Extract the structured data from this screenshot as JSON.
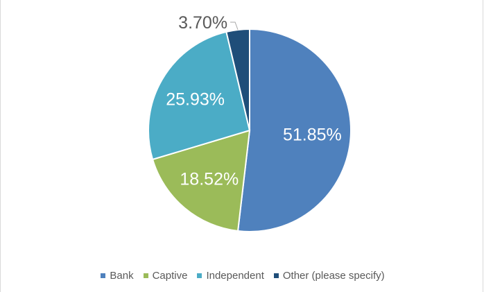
{
  "chart_data": {
    "type": "pie",
    "title": "",
    "categories": [
      "Bank",
      "Captive",
      "Independent",
      "Other (please specify)"
    ],
    "values": [
      51.85,
      18.52,
      25.93,
      3.7
    ],
    "labels": [
      "51.85%",
      "18.52%",
      "25.93%",
      "3.70%"
    ],
    "colors": [
      "#4f81bd",
      "#9bbb59",
      "#4bacc6",
      "#1f4e79"
    ],
    "label_colors": [
      "#ffffff",
      "#ffffff",
      "#ffffff",
      "#595959"
    ],
    "start_angle_deg": 0,
    "direction": "clockwise",
    "legend_position": "bottom"
  },
  "legend": {
    "items": [
      {
        "label": "Bank",
        "color": "#4f81bd"
      },
      {
        "label": "Captive",
        "color": "#9bbb59"
      },
      {
        "label": "Independent",
        "color": "#4bacc6"
      },
      {
        "label": "Other (please specify)",
        "color": "#1f4e79"
      }
    ]
  }
}
